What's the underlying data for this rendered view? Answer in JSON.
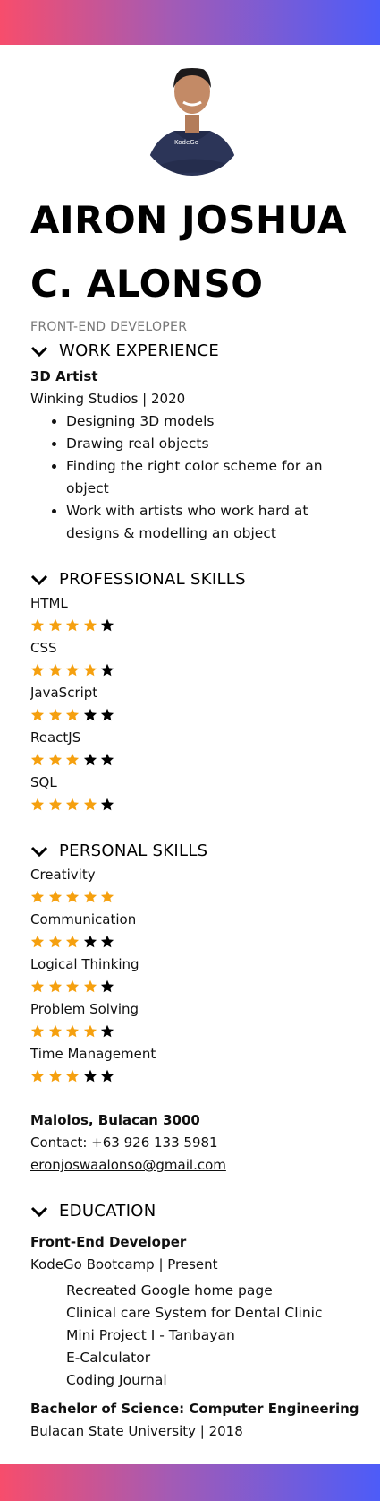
{
  "profile": {
    "name_line1": "AIRON JOSHUA",
    "name_line2": "C. ALONSO",
    "role": "FRONT-END DEVELOPER",
    "shirt_text": "KodeGo"
  },
  "work": {
    "heading": "WORK EXPERIENCE",
    "job_title": "3D Artist",
    "company": "Winking Studios | 2020",
    "duties": [
      "Designing 3D models",
      "Drawing real objects",
      "Finding the right color scheme for an object",
      "Work with artists who work hard at designs & modelling an object"
    ]
  },
  "professional_skills": {
    "heading": "PROFESSIONAL SKILLS",
    "items": [
      {
        "name": "HTML",
        "rating": 4,
        "max": 5
      },
      {
        "name": "CSS",
        "rating": 4,
        "max": 5
      },
      {
        "name": "JavaScript",
        "rating": 3,
        "max": 5
      },
      {
        "name": "ReactJS",
        "rating": 3,
        "max": 5
      },
      {
        "name": "SQL",
        "rating": 4,
        "max": 5
      }
    ]
  },
  "personal_skills": {
    "heading": "PERSONAL SKILLS",
    "items": [
      {
        "name": "Creativity",
        "rating": 5,
        "max": 5
      },
      {
        "name": "Communication",
        "rating": 3,
        "max": 5
      },
      {
        "name": "Logical Thinking",
        "rating": 4,
        "max": 5
      },
      {
        "name": "Problem Solving",
        "rating": 4,
        "max": 5
      },
      {
        "name": "Time Management",
        "rating": 3,
        "max": 5
      }
    ]
  },
  "contact": {
    "address": "Malolos, Bulacan 3000",
    "phone": "Contact: +63 926 133 5981",
    "email": "eronjoswaalonso@gmail.com"
  },
  "education": {
    "heading": "EDUCATION",
    "entries": [
      {
        "degree": "Front-End Developer",
        "school": "KodeGo Bootcamp | Present",
        "projects": [
          "Recreated Google home page",
          "Clinical care System for Dental Clinic",
          "Mini Project I - Tanbayan",
          "E-Calculator",
          "Coding Journal"
        ]
      },
      {
        "degree": "Bachelor of Science: Computer Engineering",
        "school": "Bulacan State University | 2018"
      }
    ]
  },
  "colors": {
    "gradient_start": "#f74d6c",
    "gradient_end": "#4d5cf8",
    "star_filled": "#f5a00f",
    "star_empty": "#000000"
  }
}
